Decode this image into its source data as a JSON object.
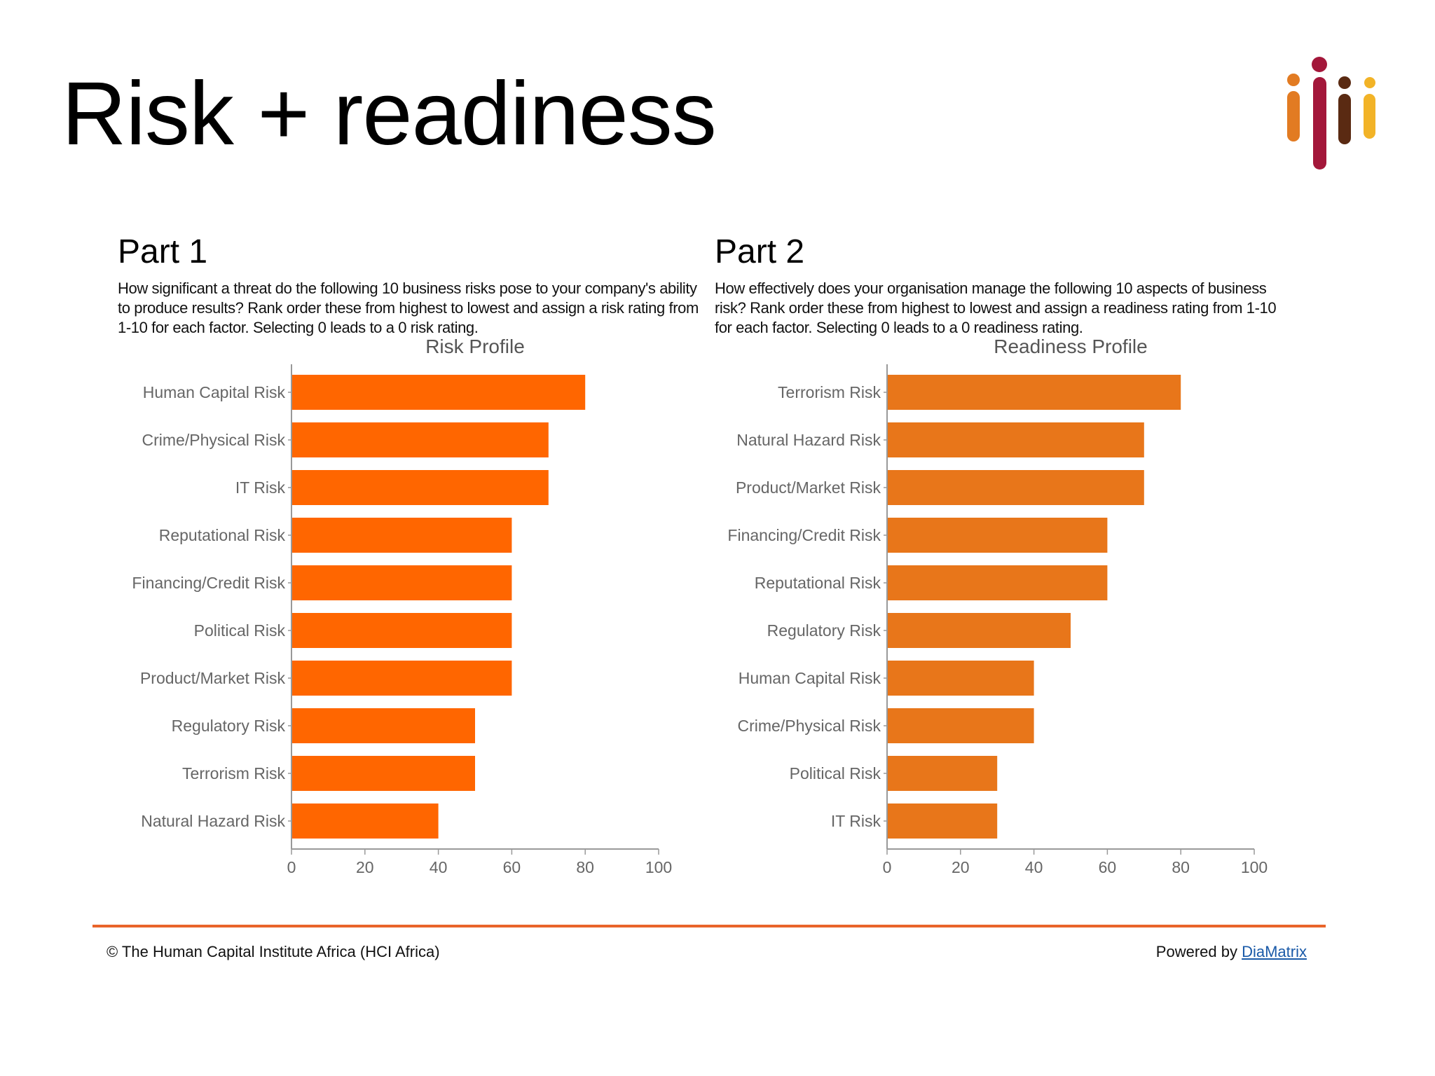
{
  "slide": {
    "title": "Risk + readiness"
  },
  "logo": {
    "icon": "hci-africa-logo-icon",
    "colors": [
      "#e27b22",
      "#a3173a",
      "#5a2a12",
      "#f2b327"
    ]
  },
  "part1": {
    "heading": "Part 1",
    "description": "How significant a threat do the following 10 business risks pose to your company's ability to produce results? Rank order these from highest to lowest and assign a risk rating from 1-10 for each factor. Selecting 0 leads to a 0 risk rating."
  },
  "part2": {
    "heading": "Part 2",
    "description": "How effectively does your organisation manage the following 10 aspects of business risk? Rank order these from highest to lowest and assign a readiness rating from 1-10 for each factor. Selecting 0 leads to a 0 readiness rating."
  },
  "chart_data": [
    {
      "type": "bar",
      "orientation": "horizontal",
      "title": "Risk Profile",
      "categories": [
        "Human Capital Risk",
        "Crime/Physical Risk",
        "IT Risk",
        "Reputational Risk",
        "Financing/Credit Risk",
        "Political Risk",
        "Product/Market Risk",
        "Regulatory Risk",
        "Terrorism Risk",
        "Natural Hazard Risk"
      ],
      "values": [
        80,
        70,
        70,
        60,
        60,
        60,
        60,
        50,
        50,
        40
      ],
      "xlim": [
        0,
        100
      ],
      "xticks": [
        "0",
        "20",
        "40",
        "60",
        "80",
        "100"
      ],
      "bar_color": "#ff6600",
      "grid": false
    },
    {
      "type": "bar",
      "orientation": "horizontal",
      "title": "Readiness Profile",
      "categories": [
        "Terrorism Risk",
        "Natural Hazard Risk",
        "Product/Market Risk",
        "Financing/Credit Risk",
        "Reputational Risk",
        "Regulatory Risk",
        "Human Capital Risk",
        "Crime/Physical Risk",
        "Political Risk",
        "IT Risk"
      ],
      "values": [
        80,
        70,
        70,
        60,
        60,
        50,
        40,
        40,
        30,
        30
      ],
      "xlim": [
        0,
        100
      ],
      "xticks": [
        "0",
        "20",
        "40",
        "60",
        "80",
        "100"
      ],
      "bar_color": "#e8761a",
      "grid": false
    }
  ],
  "footer": {
    "copyright": "© The Human Capital Institute Africa (HCI Africa)",
    "powered_prefix": "Powered by ",
    "powered_link": "DiaMatrix",
    "rule_color": "#e9642a"
  }
}
